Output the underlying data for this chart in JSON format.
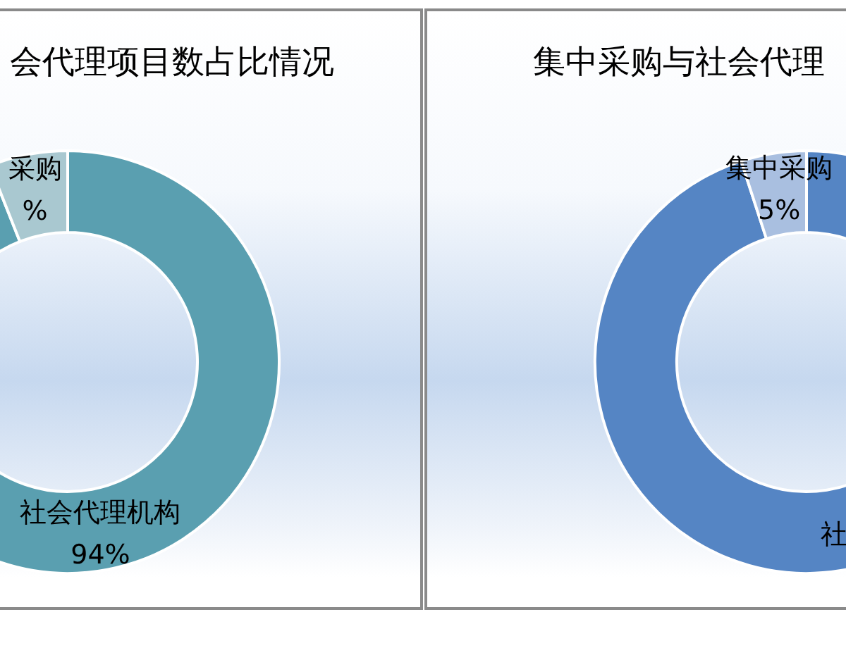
{
  "chart_data": [
    {
      "type": "donut",
      "title": "会代理项目数占比情况",
      "categories": [
        "社会代理机构",
        "采购"
      ],
      "values": [
        94,
        6
      ],
      "colors": [
        "#5a9fb0",
        "#a9c8d0"
      ],
      "value_labels": [
        "94%",
        "%"
      ]
    },
    {
      "type": "donut",
      "title": "集中采购与社会代理",
      "categories": [
        "社",
        "集中采购"
      ],
      "values": [
        95,
        5
      ],
      "colors": [
        "#5585c4",
        "#a9bfe0"
      ],
      "value_labels": [
        null,
        "5%"
      ]
    }
  ]
}
